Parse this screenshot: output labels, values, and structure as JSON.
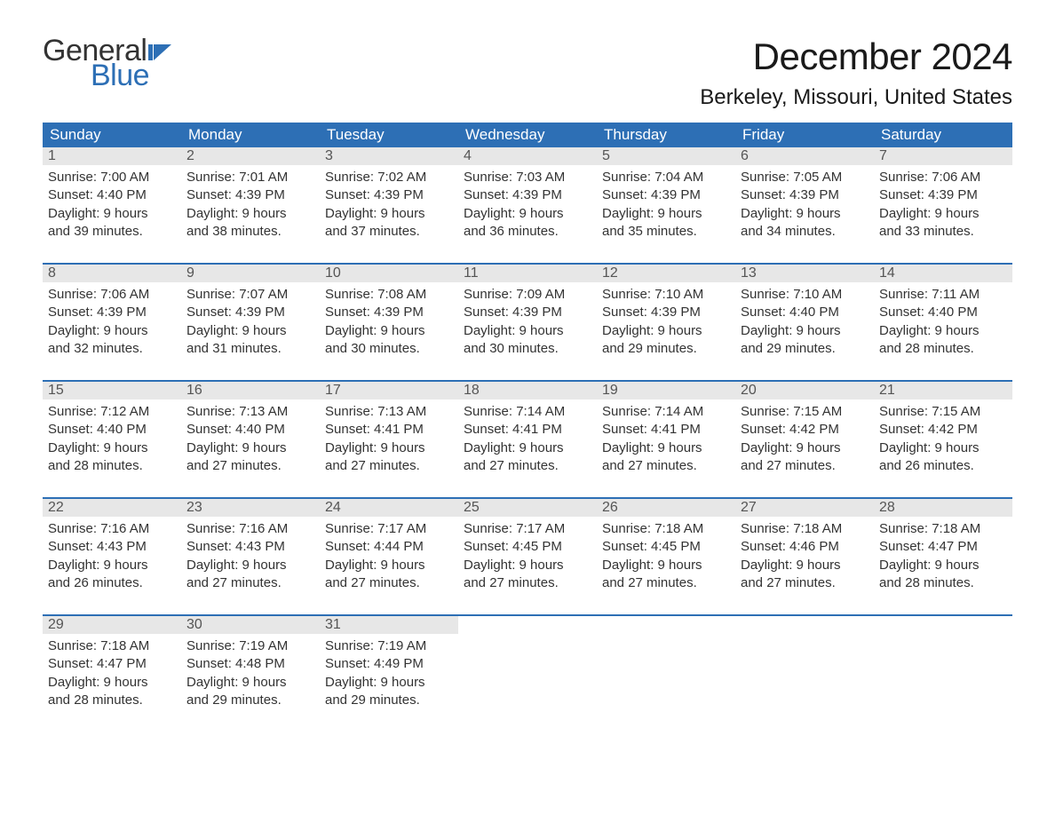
{
  "logo": {
    "word1": "General",
    "word2": "Blue",
    "flag_color": "#2d6fb5"
  },
  "title": "December 2024",
  "location": "Berkeley, Missouri, United States",
  "colors": {
    "header_bg": "#2d6fb5",
    "header_text": "#ffffff",
    "daynum_bg": "#e7e7e7",
    "daynum_text": "#555555",
    "body_text": "#333333",
    "row_border": "#2d6fb5",
    "page_bg": "#ffffff"
  },
  "fonts": {
    "title_pt": 42,
    "location_pt": 24,
    "th_pt": 17,
    "cell_pt": 15
  },
  "layout": {
    "columns": 7,
    "rows": 5,
    "type": "calendar-table"
  },
  "day_names": [
    "Sunday",
    "Monday",
    "Tuesday",
    "Wednesday",
    "Thursday",
    "Friday",
    "Saturday"
  ],
  "weeks": [
    [
      {
        "n": "1",
        "sr": "Sunrise: 7:00 AM",
        "ss": "Sunset: 4:40 PM",
        "d1": "Daylight: 9 hours",
        "d2": "and 39 minutes."
      },
      {
        "n": "2",
        "sr": "Sunrise: 7:01 AM",
        "ss": "Sunset: 4:39 PM",
        "d1": "Daylight: 9 hours",
        "d2": "and 38 minutes."
      },
      {
        "n": "3",
        "sr": "Sunrise: 7:02 AM",
        "ss": "Sunset: 4:39 PM",
        "d1": "Daylight: 9 hours",
        "d2": "and 37 minutes."
      },
      {
        "n": "4",
        "sr": "Sunrise: 7:03 AM",
        "ss": "Sunset: 4:39 PM",
        "d1": "Daylight: 9 hours",
        "d2": "and 36 minutes."
      },
      {
        "n": "5",
        "sr": "Sunrise: 7:04 AM",
        "ss": "Sunset: 4:39 PM",
        "d1": "Daylight: 9 hours",
        "d2": "and 35 minutes."
      },
      {
        "n": "6",
        "sr": "Sunrise: 7:05 AM",
        "ss": "Sunset: 4:39 PM",
        "d1": "Daylight: 9 hours",
        "d2": "and 34 minutes."
      },
      {
        "n": "7",
        "sr": "Sunrise: 7:06 AM",
        "ss": "Sunset: 4:39 PM",
        "d1": "Daylight: 9 hours",
        "d2": "and 33 minutes."
      }
    ],
    [
      {
        "n": "8",
        "sr": "Sunrise: 7:06 AM",
        "ss": "Sunset: 4:39 PM",
        "d1": "Daylight: 9 hours",
        "d2": "and 32 minutes."
      },
      {
        "n": "9",
        "sr": "Sunrise: 7:07 AM",
        "ss": "Sunset: 4:39 PM",
        "d1": "Daylight: 9 hours",
        "d2": "and 31 minutes."
      },
      {
        "n": "10",
        "sr": "Sunrise: 7:08 AM",
        "ss": "Sunset: 4:39 PM",
        "d1": "Daylight: 9 hours",
        "d2": "and 30 minutes."
      },
      {
        "n": "11",
        "sr": "Sunrise: 7:09 AM",
        "ss": "Sunset: 4:39 PM",
        "d1": "Daylight: 9 hours",
        "d2": "and 30 minutes."
      },
      {
        "n": "12",
        "sr": "Sunrise: 7:10 AM",
        "ss": "Sunset: 4:39 PM",
        "d1": "Daylight: 9 hours",
        "d2": "and 29 minutes."
      },
      {
        "n": "13",
        "sr": "Sunrise: 7:10 AM",
        "ss": "Sunset: 4:40 PM",
        "d1": "Daylight: 9 hours",
        "d2": "and 29 minutes."
      },
      {
        "n": "14",
        "sr": "Sunrise: 7:11 AM",
        "ss": "Sunset: 4:40 PM",
        "d1": "Daylight: 9 hours",
        "d2": "and 28 minutes."
      }
    ],
    [
      {
        "n": "15",
        "sr": "Sunrise: 7:12 AM",
        "ss": "Sunset: 4:40 PM",
        "d1": "Daylight: 9 hours",
        "d2": "and 28 minutes."
      },
      {
        "n": "16",
        "sr": "Sunrise: 7:13 AM",
        "ss": "Sunset: 4:40 PM",
        "d1": "Daylight: 9 hours",
        "d2": "and 27 minutes."
      },
      {
        "n": "17",
        "sr": "Sunrise: 7:13 AM",
        "ss": "Sunset: 4:41 PM",
        "d1": "Daylight: 9 hours",
        "d2": "and 27 minutes."
      },
      {
        "n": "18",
        "sr": "Sunrise: 7:14 AM",
        "ss": "Sunset: 4:41 PM",
        "d1": "Daylight: 9 hours",
        "d2": "and 27 minutes."
      },
      {
        "n": "19",
        "sr": "Sunrise: 7:14 AM",
        "ss": "Sunset: 4:41 PM",
        "d1": "Daylight: 9 hours",
        "d2": "and 27 minutes."
      },
      {
        "n": "20",
        "sr": "Sunrise: 7:15 AM",
        "ss": "Sunset: 4:42 PM",
        "d1": "Daylight: 9 hours",
        "d2": "and 27 minutes."
      },
      {
        "n": "21",
        "sr": "Sunrise: 7:15 AM",
        "ss": "Sunset: 4:42 PM",
        "d1": "Daylight: 9 hours",
        "d2": "and 26 minutes."
      }
    ],
    [
      {
        "n": "22",
        "sr": "Sunrise: 7:16 AM",
        "ss": "Sunset: 4:43 PM",
        "d1": "Daylight: 9 hours",
        "d2": "and 26 minutes."
      },
      {
        "n": "23",
        "sr": "Sunrise: 7:16 AM",
        "ss": "Sunset: 4:43 PM",
        "d1": "Daylight: 9 hours",
        "d2": "and 27 minutes."
      },
      {
        "n": "24",
        "sr": "Sunrise: 7:17 AM",
        "ss": "Sunset: 4:44 PM",
        "d1": "Daylight: 9 hours",
        "d2": "and 27 minutes."
      },
      {
        "n": "25",
        "sr": "Sunrise: 7:17 AM",
        "ss": "Sunset: 4:45 PM",
        "d1": "Daylight: 9 hours",
        "d2": "and 27 minutes."
      },
      {
        "n": "26",
        "sr": "Sunrise: 7:18 AM",
        "ss": "Sunset: 4:45 PM",
        "d1": "Daylight: 9 hours",
        "d2": "and 27 minutes."
      },
      {
        "n": "27",
        "sr": "Sunrise: 7:18 AM",
        "ss": "Sunset: 4:46 PM",
        "d1": "Daylight: 9 hours",
        "d2": "and 27 minutes."
      },
      {
        "n": "28",
        "sr": "Sunrise: 7:18 AM",
        "ss": "Sunset: 4:47 PM",
        "d1": "Daylight: 9 hours",
        "d2": "and 28 minutes."
      }
    ],
    [
      {
        "n": "29",
        "sr": "Sunrise: 7:18 AM",
        "ss": "Sunset: 4:47 PM",
        "d1": "Daylight: 9 hours",
        "d2": "and 28 minutes."
      },
      {
        "n": "30",
        "sr": "Sunrise: 7:19 AM",
        "ss": "Sunset: 4:48 PM",
        "d1": "Daylight: 9 hours",
        "d2": "and 29 minutes."
      },
      {
        "n": "31",
        "sr": "Sunrise: 7:19 AM",
        "ss": "Sunset: 4:49 PM",
        "d1": "Daylight: 9 hours",
        "d2": "and 29 minutes."
      },
      null,
      null,
      null,
      null
    ]
  ]
}
